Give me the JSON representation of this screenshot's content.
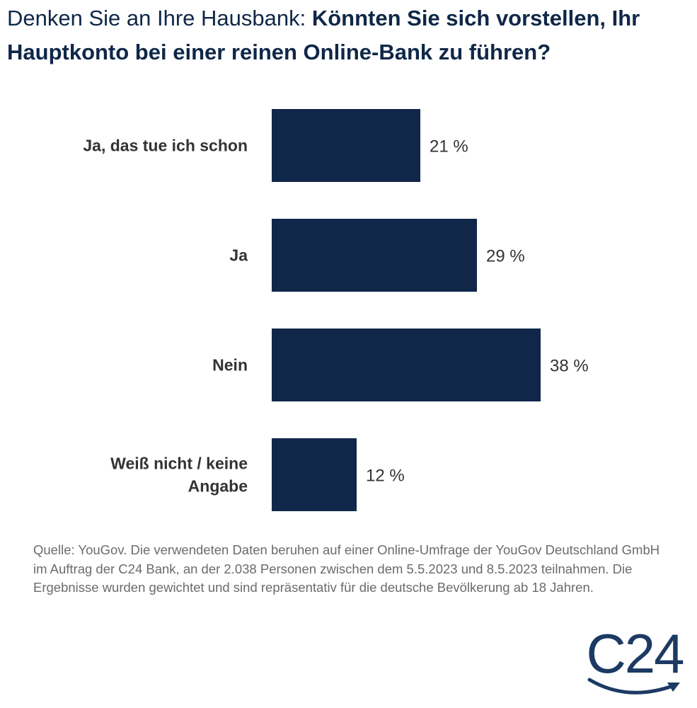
{
  "title": {
    "lead": "Denken Sie an Ihre Hausbank:",
    "question": "Könnten Sie sich vorstellen, Ihr Hauptkonto bei einer reinen Online-Bank zu führen?"
  },
  "chart_data": {
    "type": "bar",
    "orientation": "horizontal",
    "categories": [
      [
        "Ja, das tue ich schon"
      ],
      [
        "Ja"
      ],
      [
        "Nein"
      ],
      [
        "Weiß nicht / keine",
        "Angabe"
      ]
    ],
    "values": [
      21,
      29,
      38,
      12
    ],
    "value_labels": [
      "21 %",
      "29 %",
      "38 %",
      "12 %"
    ],
    "unit": "%",
    "bar_color": "#10274a",
    "grid": false,
    "legend": "none"
  },
  "source": {
    "text": "Quelle: YouGov. Die verwendeten Daten beruhen auf einer Online-Umfrage der YouGov Deutschland GmbH im Auftrag der C24 Bank, an der 2.038 Personen zwischen dem 5.5.2023 und 8.5.2023 teilnahmen. Die Ergebnisse wurden gewichtet und sind repräsentativ für die deutsche Bevölkerung ab 18 Jahren."
  },
  "logo": {
    "text": "C24",
    "color": "#1c3a63"
  }
}
